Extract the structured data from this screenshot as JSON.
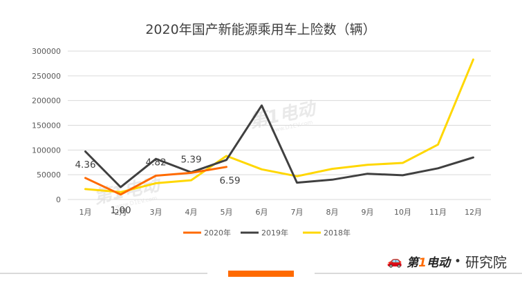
{
  "chart_data": {
    "type": "line",
    "title": "2020年国产新能源乘用车上险数（辆）",
    "categories": [
      "1月",
      "2月",
      "3月",
      "4月",
      "5月",
      "6月",
      "7月",
      "8月",
      "9月",
      "10月",
      "11月",
      "12月"
    ],
    "ylim": [
      0,
      300000
    ],
    "yticks": [
      "0",
      "50000",
      "100000",
      "150000",
      "200000",
      "250000",
      "300000"
    ],
    "grid": true,
    "legend_position": "bottom",
    "series": [
      {
        "name": "2020年",
        "color": "#ff6a00",
        "values": [
          43600,
          10000,
          48200,
          53900,
          65900,
          null,
          null,
          null,
          null,
          null,
          null,
          null
        ],
        "labels": [
          "4.36",
          "1.00",
          "4.82",
          "5.39",
          "6.59"
        ]
      },
      {
        "name": "2019年",
        "color": "#404040",
        "values": [
          97000,
          25000,
          82000,
          55000,
          80000,
          190000,
          34000,
          40000,
          52000,
          49000,
          63000,
          85000
        ]
      },
      {
        "name": "2018年",
        "color": "#ffd700",
        "values": [
          21000,
          15000,
          33000,
          39000,
          88000,
          61000,
          47000,
          62000,
          70000,
          74000,
          111000,
          283000
        ]
      }
    ]
  },
  "watermark": {
    "icon": "car-icon",
    "text_left": "第",
    "text_one": "1",
    "text_right": "电动",
    "domain": "www.D1EV.com"
  },
  "brand": {
    "icon": "car-icon",
    "name_left": "第",
    "name_one": "1",
    "name_right": "电动",
    "dot": "•",
    "institute": "研究院"
  }
}
